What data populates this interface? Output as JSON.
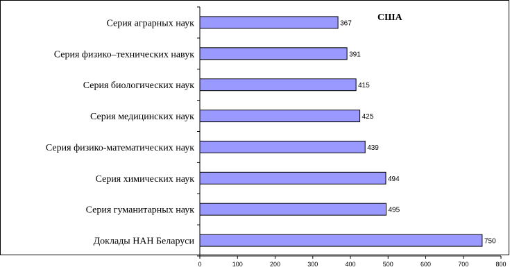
{
  "chart_data": {
    "type": "bar",
    "orientation": "horizontal",
    "title": "США",
    "categories": [
      "Серия аграрных наук",
      "Серия физико–технических навук",
      "Серия биологических наук",
      "Серия медицинских наук",
      "Серия физико-математических наук",
      "Серия химических наук",
      "Серия гуманитарных наук",
      "Доклады НАН Беларуси"
    ],
    "values": [
      367,
      391,
      415,
      425,
      439,
      494,
      495,
      750
    ],
    "data_labels": [
      "367",
      "391",
      "415",
      "425",
      "439",
      "494",
      "495",
      "750"
    ],
    "xlim": [
      0,
      800
    ],
    "x_ticks": [
      0,
      100,
      200,
      300,
      400,
      500,
      600,
      700,
      800
    ],
    "x_tick_labels": [
      "0",
      "100",
      "200",
      "300",
      "400",
      "500",
      "600",
      "700",
      "800"
    ],
    "xlabel": "",
    "ylabel": "",
    "grid": false,
    "legend": false,
    "colors": {
      "bar_fill": "#9999ff",
      "bar_stroke": "#000000",
      "axis": "#000000",
      "frame": "#000000"
    }
  }
}
